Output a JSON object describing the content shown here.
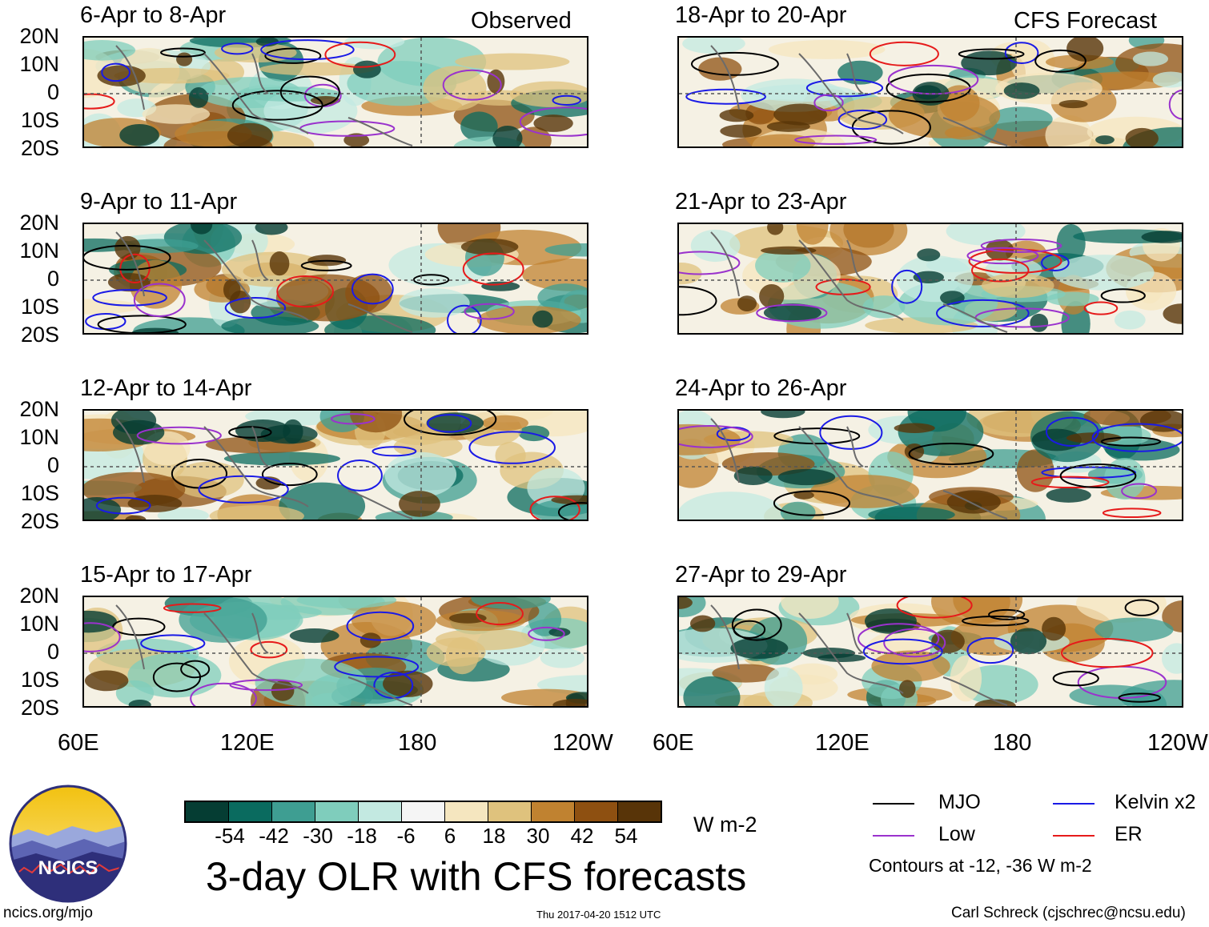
{
  "observed_label": "Observed",
  "forecast_label": "CFS Forecast",
  "observed_panels": [
    "6-Apr to 8-Apr",
    "9-Apr to 11-Apr",
    "12-Apr to 14-Apr",
    "15-Apr to 17-Apr"
  ],
  "forecast_panels": [
    "18-Apr to 20-Apr",
    "21-Apr to 23-Apr",
    "24-Apr to 26-Apr",
    "27-Apr to 29-Apr"
  ],
  "lat_labels": [
    "20N",
    "10N",
    "0",
    "10S",
    "20S"
  ],
  "lon_labels": [
    "60E",
    "120E",
    "180",
    "120W"
  ],
  "colorbar": {
    "colors": [
      "#053d33",
      "#0a6b5f",
      "#3e9e92",
      "#7fcdbc",
      "#c3e9e1",
      "#f5f5f5",
      "#f5e6bf",
      "#dfc27d",
      "#c08230",
      "#8e5011",
      "#583408"
    ],
    "labels": [
      "-54",
      "-42",
      "-30",
      "-18",
      "-6",
      "6",
      "18",
      "30",
      "42",
      "54"
    ],
    "units": "W m-2"
  },
  "title": "3-day OLR with CFS forecasts",
  "legend": {
    "items": [
      {
        "label": "MJO",
        "color": "#000000"
      },
      {
        "label": "Kelvin x2",
        "color": "#1a1ae6"
      },
      {
        "label": "Low",
        "color": "#9a32cd"
      },
      {
        "label": "ER",
        "color": "#e61a1a"
      }
    ],
    "contours": "Contours at -12, -36 W m-2"
  },
  "logo_text": "NCICS",
  "footer": {
    "url": "ncics.org/mjo",
    "timestamp": "Thu 2017-04-20 1512 UTC",
    "author": "Carl Schreck (cjschrec@ncsu.edu)"
  }
}
